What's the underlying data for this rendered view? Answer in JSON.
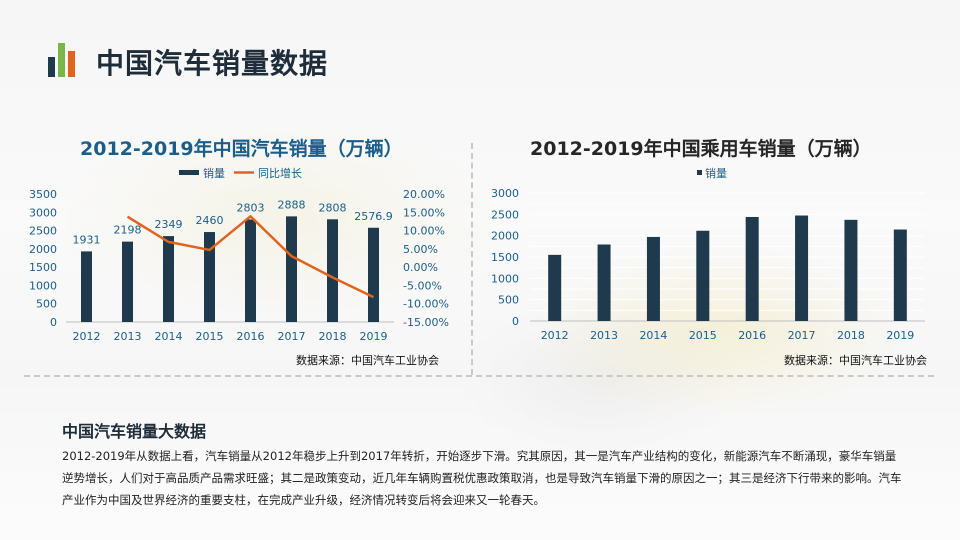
{
  "page_title": "中国汽车销量数据",
  "colors": {
    "accent_orange": "#e0641e",
    "bar_navy": "#1e3a4c",
    "title_blue": "#1b5e8a",
    "logo_green": "#7ab648"
  },
  "chart_data": [
    {
      "type": "bar",
      "title": "2012-2019年中国汽车销量（万辆）",
      "categories": [
        "2012",
        "2013",
        "2014",
        "2015",
        "2016",
        "2017",
        "2018",
        "2019"
      ],
      "series": [
        {
          "name": "销量",
          "axis": "left",
          "values": [
            1931,
            2198,
            2349,
            2460,
            2803,
            2888,
            2808,
            2576.9
          ]
        },
        {
          "name": "同比增长",
          "type": "line",
          "axis": "right",
          "values": [
            null,
            13.8,
            6.9,
            4.7,
            13.9,
            3.0,
            -2.8,
            -8.2
          ]
        }
      ],
      "data_labels": [
        "1931",
        "2198",
        "2349",
        "2460",
        "2803",
        "2888",
        "2808",
        "2576.9"
      ],
      "ylim": [
        0,
        3500
      ],
      "y_ticks": [
        "0",
        "500",
        "1000",
        "1500",
        "2000",
        "2500",
        "3000",
        "3500"
      ],
      "y2lim": [
        -15,
        20
      ],
      "y2_ticks": [
        "-15.00%",
        "-10.00%",
        "-5.00%",
        "0.00%",
        "5.00%",
        "10.00%",
        "15.00%",
        "20.00%"
      ],
      "legend": "top",
      "source": "数据来源：中国汽车工业协会"
    },
    {
      "type": "bar",
      "title": "2012-2019年中国乘用车销量（万辆）",
      "categories": [
        "2012",
        "2013",
        "2014",
        "2015",
        "2016",
        "2017",
        "2018",
        "2019"
      ],
      "series": [
        {
          "name": "销量",
          "values": [
            1550,
            1793,
            1970,
            2115,
            2438,
            2472,
            2371,
            2144
          ]
        }
      ],
      "ylim": [
        0,
        3000
      ],
      "y_ticks": [
        "0",
        "500",
        "1000",
        "1500",
        "2000",
        "2500",
        "3000"
      ],
      "legend": "top",
      "source": "数据来源：中国汽车工业协会"
    }
  ],
  "summary": {
    "title": "中国汽车销量大数据",
    "text": "2012-2019年从数据上看，汽车销量从2012年稳步上升到2017年转折，开始逐步下滑。究其原因，其一是汽车产业结构的变化，新能源汽车不断涌现，豪华车销量逆势增长，人们对于高品质产品需求旺盛；其二是政策变动，近几年车辆购置税优惠政策取消，也是导致汽车销量下滑的原因之一；其三是经济下行带来的影响。汽车产业作为中国及世界经济的重要支柱，在完成产业升级，经济情况转变后将会迎来又一轮春天。"
  }
}
